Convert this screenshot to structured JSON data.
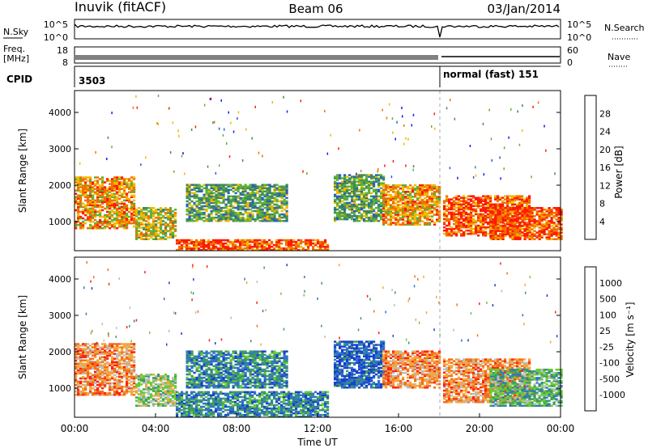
{
  "header": {
    "station": "Inuvik (fitACF)",
    "beam": "Beam 06",
    "date": "03/Jan/2014"
  },
  "noise_panel": {
    "left_label": "N.Sky",
    "right_label": "N.Search",
    "left_ticks": [
      "10^5",
      "10^0"
    ],
    "right_ticks": [
      "10^5",
      "10^0"
    ]
  },
  "freq_panel": {
    "left_label_line1": "Freq.",
    "left_label_line2": "[MHz]",
    "right_label": "Nave",
    "left_ticks": [
      "18",
      "8"
    ],
    "right_ticks": [
      "60",
      "0"
    ]
  },
  "cpid_panel": {
    "label": "CPID",
    "segments": [
      {
        "start_hour": 0.0,
        "text": "3503"
      },
      {
        "start_hour": 18.0,
        "text": "normal (fast) 151"
      }
    ]
  },
  "chart_data": [
    {
      "type": "heatmap",
      "panel": "power",
      "ylabel": "Slant Range [km]",
      "xlabel": "",
      "ylim": [
        200,
        4600
      ],
      "xlim_hours": [
        0,
        24
      ],
      "y_ticks": [
        "1000",
        "2000",
        "3000",
        "4000"
      ],
      "colorbar": {
        "label": "Power [dB]",
        "tick_labels": [
          "4",
          "8",
          "12",
          "16",
          "20",
          "24",
          "28"
        ],
        "colors": [
          "#1414ff",
          "#2a5fbf",
          "#3f8a5a",
          "#5fb03a",
          "#f2b800",
          "#f07000",
          "#ff1a00"
        ]
      },
      "echo_regions": [
        {
          "h0": 0.0,
          "h1": 3.0,
          "r0": 800,
          "r1": 2200,
          "cls": 5
        },
        {
          "h0": 3.0,
          "h1": 5.0,
          "r0": 500,
          "r1": 1400,
          "cls": 4
        },
        {
          "h0": 5.0,
          "h1": 12.5,
          "r0": 200,
          "r1": 500,
          "cls": 6
        },
        {
          "h0": 5.5,
          "h1": 10.5,
          "r0": 1000,
          "r1": 2000,
          "cls": 3
        },
        {
          "h0": 12.8,
          "h1": 15.2,
          "r0": 1000,
          "r1": 2300,
          "cls": 3
        },
        {
          "h0": 15.2,
          "h1": 18.0,
          "r0": 900,
          "r1": 2000,
          "cls": 5
        },
        {
          "h0": 18.2,
          "h1": 22.5,
          "r0": 600,
          "r1": 1700,
          "cls": 6
        },
        {
          "h0": 20.5,
          "h1": 24.0,
          "r0": 500,
          "r1": 1400,
          "cls": 6
        }
      ]
    },
    {
      "type": "heatmap",
      "panel": "velocity",
      "ylabel": "Slant Range [km]",
      "xlabel": "Time UT",
      "ylim": [
        200,
        4600
      ],
      "xlim_hours": [
        0,
        24
      ],
      "x_ticks": [
        "00:00",
        "04:00",
        "08:00",
        "12:00",
        "16:00",
        "20:00",
        "00:00"
      ],
      "y_ticks": [
        "1000",
        "2000",
        "3000",
        "4000"
      ],
      "colorbar": {
        "label": "Velocity [m s⁻¹]",
        "tick_labels": [
          "1000",
          "500",
          "100",
          "25",
          "-25",
          "-100",
          "-500",
          "-1000"
        ],
        "colors": [
          "#1a3fd0",
          "#2f74c4",
          "#3c9a66",
          "#66cc33",
          "#bdbdbd",
          "#f7a53a",
          "#f07020",
          "#ff2010"
        ]
      },
      "echo_regions": [
        {
          "h0": 0.0,
          "h1": 3.0,
          "r0": 800,
          "r1": 2200,
          "cls": 6
        },
        {
          "h0": 3.0,
          "h1": 5.0,
          "r0": 500,
          "r1": 1400,
          "cls": 4
        },
        {
          "h0": 5.0,
          "h1": 12.5,
          "r0": 200,
          "r1": 900,
          "cls": 2
        },
        {
          "h0": 5.5,
          "h1": 10.5,
          "r0": 1000,
          "r1": 2000,
          "cls": 2
        },
        {
          "h0": 12.8,
          "h1": 15.2,
          "r0": 1000,
          "r1": 2300,
          "cls": 1
        },
        {
          "h0": 15.2,
          "h1": 18.0,
          "r0": 1000,
          "r1": 2000,
          "cls": 6
        },
        {
          "h0": 18.2,
          "h1": 22.5,
          "r0": 600,
          "r1": 1800,
          "cls": 6
        },
        {
          "h0": 20.5,
          "h1": 24.0,
          "r0": 500,
          "r1": 1500,
          "cls": 3
        }
      ]
    }
  ]
}
